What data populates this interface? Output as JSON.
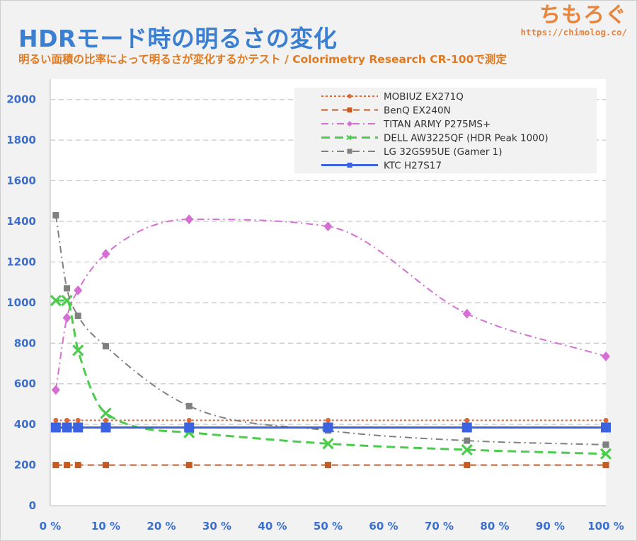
{
  "header": {
    "title": "HDRモード時の明るさの変化",
    "subtitle": "明るい面積の比率によって明るさが変化するかテスト / Colorimetry Research CR-100で測定",
    "brand_logo": "ちもろぐ",
    "brand_url": "https://chimolog.co/"
  },
  "chart_data": {
    "type": "line",
    "x_ticks": [
      "0 %",
      "10 %",
      "20 %",
      "30 %",
      "40 %",
      "50 %",
      "60 %",
      "70 %",
      "80 %",
      "90 %",
      "100 %"
    ],
    "y_ticks": [
      "0",
      "200",
      "400",
      "600",
      "800",
      "1000",
      "1200",
      "1400",
      "1600",
      "1800",
      "2000"
    ],
    "xlim": [
      0,
      100
    ],
    "ylim": [
      0,
      2100
    ],
    "grid": "horizontal dashed",
    "legend_position": "top-right",
    "series": [
      {
        "name": "MOBIUZ EX271Q",
        "color": "#d9693a",
        "dash": "dotted",
        "marker": "circle",
        "smooth": false,
        "x": [
          1,
          3,
          5,
          10,
          25,
          50,
          75,
          100
        ],
        "y": [
          420,
          420,
          420,
          420,
          420,
          420,
          420,
          420
        ]
      },
      {
        "name": "BenQ EX240N",
        "color": "#c55a22",
        "dash": "dashed",
        "marker": "square",
        "smooth": false,
        "x": [
          1,
          3,
          5,
          10,
          25,
          50,
          75,
          100
        ],
        "y": [
          200,
          200,
          200,
          200,
          200,
          200,
          200,
          200
        ]
      },
      {
        "name": "TITAN ARMY P275MS+",
        "color": "#d56fd4",
        "dash": "dashdot",
        "marker": "diamond",
        "smooth": true,
        "x": [
          1,
          3,
          5,
          10,
          25,
          50,
          75,
          100
        ],
        "y": [
          570,
          925,
          1060,
          1240,
          1410,
          1375,
          945,
          735
        ]
      },
      {
        "name": "DELL AW3225QF (HDR Peak 1000)",
        "color": "#4ccc4c",
        "dash": "longdash",
        "marker": "x",
        "smooth": true,
        "x": [
          1,
          3,
          5,
          10,
          25,
          50,
          75,
          100
        ],
        "y": [
          1010,
          1010,
          765,
          455,
          360,
          305,
          275,
          255
        ]
      },
      {
        "name": "LG 32GS95UE (Gamer 1)",
        "color": "#808080",
        "dash": "dashdot",
        "marker": "square",
        "smooth": true,
        "x": [
          1,
          3,
          5,
          10,
          25,
          50,
          75,
          100
        ],
        "y": [
          1430,
          1070,
          935,
          785,
          490,
          370,
          320,
          300
        ]
      },
      {
        "name": "KTC H27S17",
        "color": "#3b62e0",
        "dash": "solid",
        "marker": "bigsquare",
        "smooth": false,
        "x": [
          1,
          3,
          5,
          10,
          25,
          50,
          75,
          100
        ],
        "y": [
          385,
          385,
          385,
          385,
          385,
          385,
          385,
          385
        ]
      }
    ]
  }
}
